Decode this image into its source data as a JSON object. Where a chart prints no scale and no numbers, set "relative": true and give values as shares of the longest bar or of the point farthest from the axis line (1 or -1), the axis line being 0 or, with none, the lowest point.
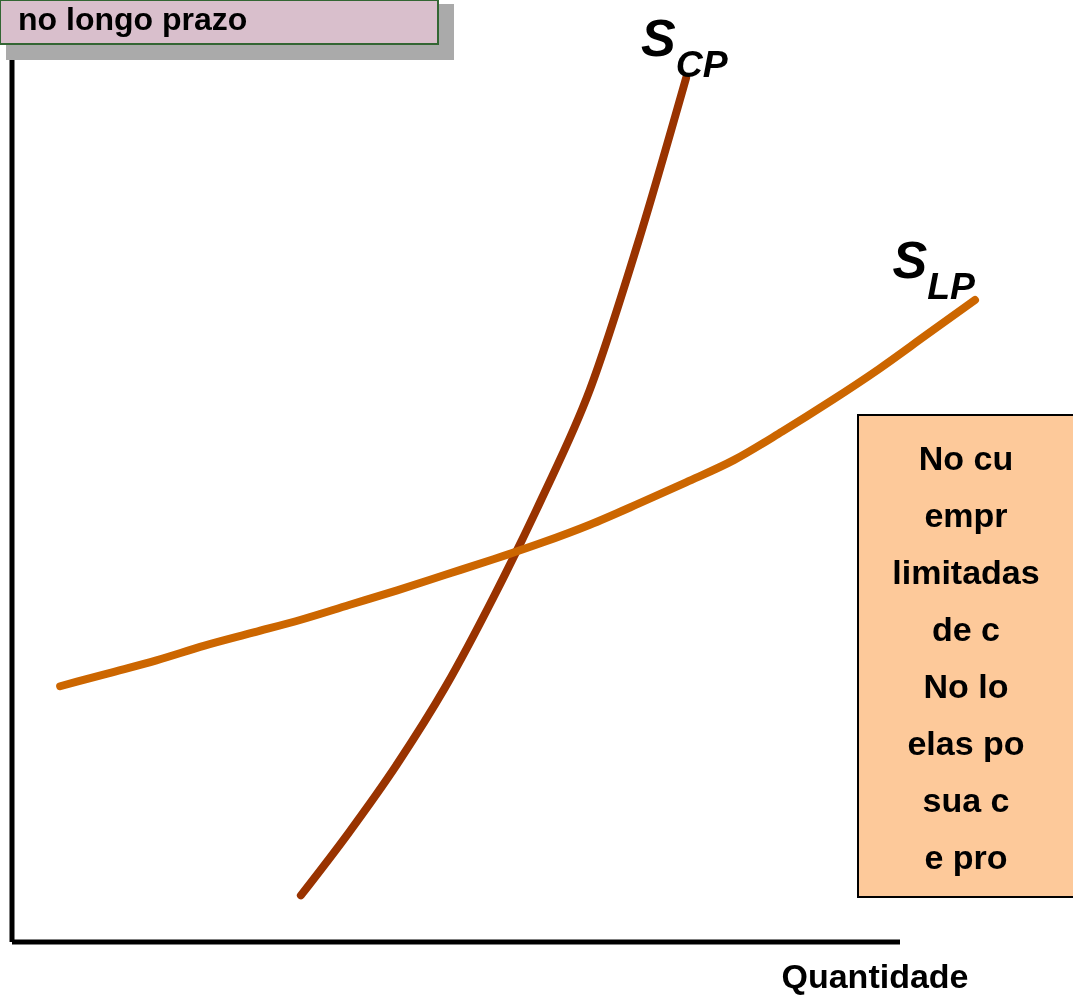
{
  "chart_data": {
    "type": "line",
    "relative": true,
    "title": "no longo prazo",
    "xlabel": "Quantidade",
    "categories": [
      null,
      null,
      null,
      null,
      null,
      null,
      null,
      null,
      null,
      null,
      null,
      null,
      null,
      null,
      null,
      null,
      null,
      null,
      null,
      null,
      null
    ],
    "series": [
      {
        "name": "S$_{CP}$",
        "color": "#993300",
        "values": [
          null,
          null,
          null,
          null,
          null,
          null,
          0.054,
          0.127,
          0.206,
          0.295,
          0.399,
          0.513,
          0.639,
          0.809,
          1.0,
          null,
          null,
          null,
          null,
          null,
          null
        ]
      },
      {
        "name": "S$_{LP}$",
        "color": "#cc6600",
        "values": [
          null,
          0.296,
          0.311,
          0.326,
          0.343,
          0.358,
          0.373,
          0.39,
          0.407,
          0.425,
          0.443,
          0.462,
          0.483,
          0.507,
          0.532,
          0.558,
          0.591,
          0.626,
          0.663,
          0.703,
          0.743
        ]
      }
    ],
    "annotations": [
      "No cu\nempr\nlimitadas\nde c\nNo lo\nelas po\nsua c\ne pro"
    ],
    "marker": "none",
    "line_style": "solid"
  }
}
